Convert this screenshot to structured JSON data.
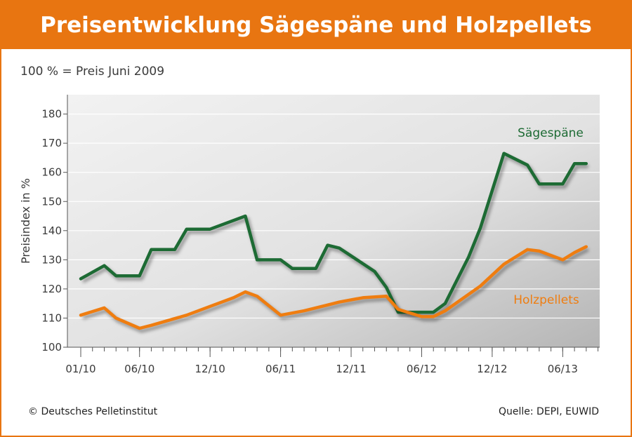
{
  "title": "Preisentwicklung Sägespäne und Holzpellets",
  "subtitle": "100 % = Preis Juni 2009",
  "footer": {
    "copyright": "© Deutsches Pelletinstitut",
    "source": "Quelle: DEPI, EUWID"
  },
  "colors": {
    "accent": "#e87511",
    "saegespaene": "#1d6b34",
    "holzpellets": "#ef7d10",
    "plot_bg": "#e2e2e2"
  },
  "chart_data": {
    "type": "line",
    "ylabel": "Preisindex in %",
    "xlabel": "",
    "ylim": [
      100,
      185
    ],
    "yticks": [
      100,
      110,
      120,
      130,
      140,
      150,
      160,
      170,
      180
    ],
    "xlim": [
      0,
      44
    ],
    "xtick_labels": [
      {
        "x": 0,
        "label": "01/10"
      },
      {
        "x": 5,
        "label": "06/10"
      },
      {
        "x": 11,
        "label": "12/10"
      },
      {
        "x": 17,
        "label": "06/11"
      },
      {
        "x": 23,
        "label": "12/11"
      },
      {
        "x": 29,
        "label": "06/12"
      },
      {
        "x": 35,
        "label": "12/12"
      },
      {
        "x": 41,
        "label": "06/13"
      }
    ],
    "grid": true,
    "series": [
      {
        "name": "Sägespäne",
        "color": "#1d6b34",
        "points": [
          [
            0,
            123.5
          ],
          [
            2,
            128
          ],
          [
            3,
            124.5
          ],
          [
            5,
            124.5
          ],
          [
            6,
            133.5
          ],
          [
            8,
            133.5
          ],
          [
            9,
            140.5
          ],
          [
            11,
            140.5
          ],
          [
            14,
            145
          ],
          [
            15,
            130
          ],
          [
            17,
            130
          ],
          [
            18,
            127
          ],
          [
            20,
            127
          ],
          [
            21,
            135
          ],
          [
            22,
            134
          ],
          [
            25,
            126
          ],
          [
            26,
            120.5
          ],
          [
            27,
            112
          ],
          [
            30,
            112
          ],
          [
            31,
            115
          ],
          [
            33,
            131
          ],
          [
            34,
            141
          ],
          [
            36,
            166.5
          ],
          [
            38,
            162.5
          ],
          [
            39,
            156
          ],
          [
            41,
            156
          ],
          [
            42,
            163
          ],
          [
            43,
            163
          ]
        ]
      },
      {
        "name": "Holzpellets",
        "color": "#ef7d10",
        "points": [
          [
            0,
            111
          ],
          [
            2,
            113.5
          ],
          [
            3,
            110
          ],
          [
            5,
            106.5
          ],
          [
            6,
            107.5
          ],
          [
            9,
            111
          ],
          [
            11,
            114
          ],
          [
            13,
            117
          ],
          [
            14,
            119
          ],
          [
            15,
            117.5
          ],
          [
            17,
            111
          ],
          [
            19,
            112.5
          ],
          [
            21,
            114.5
          ],
          [
            22,
            115.5
          ],
          [
            24,
            117
          ],
          [
            26,
            117.5
          ],
          [
            27,
            113
          ],
          [
            29,
            110.5
          ],
          [
            30,
            110.5
          ],
          [
            31,
            112.5
          ],
          [
            34,
            121
          ],
          [
            36,
            128.5
          ],
          [
            38,
            133.5
          ],
          [
            39,
            133
          ],
          [
            41,
            130
          ],
          [
            42,
            132.5
          ],
          [
            43,
            134.5
          ]
        ]
      }
    ]
  }
}
